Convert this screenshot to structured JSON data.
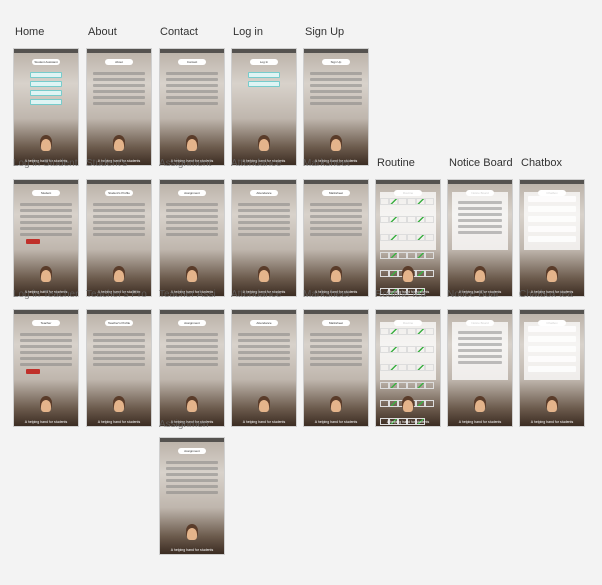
{
  "columns": [
    "Home",
    "About",
    "Contact",
    "Log in",
    "Sign Up",
    "Routine",
    "Notice Board",
    "Chatbox"
  ],
  "screens": [
    {
      "row": 0,
      "col": 0,
      "title": "Student Assistant",
      "buttons": [
        "About Us",
        "Contact",
        "Log In",
        "Sign Up"
      ],
      "footer": "A helping hand for students",
      "caption": "Log in Student"
    },
    {
      "row": 0,
      "col": 1,
      "title": "About",
      "footer": "A helping hand for students",
      "caption": "Student's"
    },
    {
      "row": 0,
      "col": 2,
      "title": "Contact",
      "phone": "Phone: 01792344234",
      "telephone": "Telephone: 88643",
      "footer": "A helping hand for students",
      "caption": "Assignment"
    },
    {
      "row": 0,
      "col": 3,
      "title": "Log In",
      "buttons": [
        "Log in as Teacher",
        "Log in as Student"
      ],
      "footer": "A helping hand for students",
      "caption": "Attendance"
    },
    {
      "row": 0,
      "col": 4,
      "title": "Sign Up",
      "footer": "A helping hand for students",
      "caption": "Marksheet"
    },
    {
      "row": 1,
      "col": 0,
      "title": "Student",
      "footer": "A helping hand for students",
      "caption": "Log in Teacher"
    },
    {
      "row": 1,
      "col": 1,
      "title": "Student's Profile",
      "footer": "A helping hand for students",
      "caption": "Teacher's Pro"
    },
    {
      "row": 1,
      "col": 2,
      "title": "Assignment",
      "footer": "A helping hand for students",
      "caption": "Teacher Assi"
    },
    {
      "row": 1,
      "col": 3,
      "title": "Attendance",
      "footer": "A helping hand for students",
      "caption": "Attendance"
    },
    {
      "row": 1,
      "col": 4,
      "title": "Marksheet",
      "footer": "A helping hand for students",
      "caption": "Marksheet"
    },
    {
      "row": 1,
      "col": 5,
      "title": "Routine",
      "footer": "A helping hand for students",
      "caption": "Routine tea"
    },
    {
      "row": 1,
      "col": 6,
      "title": "Notice Board",
      "footer": "A helping hand for students",
      "caption": "Notice Boar"
    },
    {
      "row": 1,
      "col": 7,
      "title": "Chatbox",
      "footer": "A helping hand for students",
      "caption": "Chatbox tea"
    },
    {
      "row": 2,
      "col": 0,
      "title": "Teacher",
      "footer": "A helping hand for students",
      "caption": ""
    },
    {
      "row": 2,
      "col": 1,
      "title": "Teacher's Profile",
      "footer": "A helping hand for students",
      "caption": ""
    },
    {
      "row": 2,
      "col": 2,
      "title": "Assignment",
      "footer": "A helping hand for students",
      "caption": "Assignmen"
    },
    {
      "row": 2,
      "col": 3,
      "title": "Attendance",
      "footer": "A helping hand for students",
      "caption": ""
    },
    {
      "row": 2,
      "col": 4,
      "title": "Marksheet",
      "footer": "A helping hand for students",
      "caption": ""
    },
    {
      "row": 2,
      "col": 5,
      "title": "Routine",
      "footer": "A helping hand for students",
      "caption": ""
    },
    {
      "row": 2,
      "col": 6,
      "title": "Notice Board",
      "footer": "A helping hand for students",
      "caption": ""
    },
    {
      "row": 2,
      "col": 7,
      "title": "Chatbox",
      "footer": "A helping hand for students",
      "caption": ""
    },
    {
      "row": 3,
      "col": 2,
      "title": "Assignment",
      "footer": "A helping hand for students",
      "caption": ""
    }
  ]
}
